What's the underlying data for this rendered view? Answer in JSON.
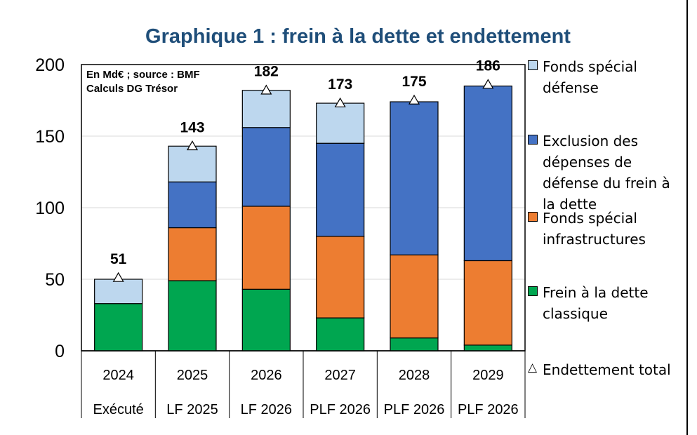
{
  "chart_data": {
    "type": "bar",
    "stacked": true,
    "title": "Graphique 1 : frein à la dette et endettement",
    "note_line1": "En Md€ ; source : BMF",
    "note_line2": "Calculs DG Trésor",
    "ylim": [
      0,
      200
    ],
    "yticks": [
      0,
      50,
      100,
      150,
      200
    ],
    "categories": [
      "2024",
      "2025",
      "2026",
      "2027",
      "2028",
      "2029"
    ],
    "sublabels": [
      "Exécuté",
      "LF 2025",
      "LF 2026",
      "PLF 2026",
      "PLF 2026",
      "PLF 2026"
    ],
    "series": [
      {
        "name": "Frein à la dette classique",
        "color": "#00a650",
        "values": [
          33,
          49,
          43,
          23,
          9,
          4
        ]
      },
      {
        "name": "Fonds spécial infrastructures",
        "color": "#ed7d31",
        "values": [
          0,
          37,
          58,
          57,
          58,
          59
        ]
      },
      {
        "name": "Exclusion des dépenses de défense du frein à la dette",
        "color": "#4472c4",
        "values": [
          0,
          32,
          55,
          65,
          107,
          122
        ]
      },
      {
        "name": "Fonds spécial défense",
        "color": "#bdd7ee",
        "values": [
          17,
          25,
          26,
          28,
          0,
          0
        ]
      }
    ],
    "totals": {
      "name": "Endettement total",
      "values": [
        51,
        143,
        182,
        173,
        175,
        186
      ]
    }
  },
  "legend": [
    {
      "key": "fonds_defense",
      "label": "Fonds spécial défense",
      "color": "#bdd7ee"
    },
    {
      "key": "exclusion",
      "label": "Exclusion des dépenses de défense du frein à la dette",
      "color": "#4472c4"
    },
    {
      "key": "fonds_infra",
      "label": "Fonds spécial infrastructures",
      "color": "#ed7d31"
    },
    {
      "key": "frein",
      "label": "Frein à la dette classique",
      "color": "#00a650"
    },
    {
      "key": "total",
      "label": "Endettement total",
      "symbol": "△"
    }
  ]
}
